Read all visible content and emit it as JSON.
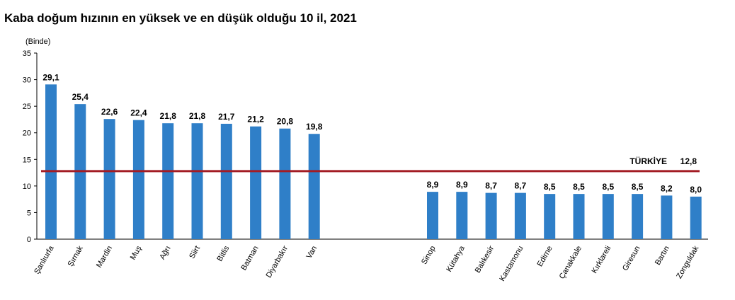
{
  "chart_data": {
    "type": "bar",
    "title": "Kaba doğum hızının en yüksek ve en düşük olduğu 10 il, 2021",
    "unit_label": "(Binde)",
    "ylim": [
      0,
      35
    ],
    "yticks": [
      0,
      5,
      10,
      15,
      20,
      25,
      30,
      35
    ],
    "grid": false,
    "colors": {
      "bar": "#2f7fc8",
      "reference": "#a31c24"
    },
    "categories": [
      "Şanlıurfa",
      "Şırnak",
      "Mardin",
      "Muş",
      "Ağrı",
      "Siirt",
      "Bitlis",
      "Batman",
      "Diyarbakır",
      "Van",
      "Sinop",
      "Kütahya",
      "Balıkesir",
      "Kastamonu",
      "Edirne",
      "Çanakkale",
      "Kırklareli",
      "Giresun",
      "Bartın",
      "Zonguldak"
    ],
    "values": [
      29.1,
      25.4,
      22.6,
      22.4,
      21.8,
      21.8,
      21.7,
      21.2,
      20.8,
      19.8,
      8.9,
      8.9,
      8.7,
      8.7,
      8.5,
      8.5,
      8.5,
      8.5,
      8.2,
      8.0
    ],
    "value_labels": [
      "29,1",
      "25,4",
      "22,6",
      "22,4",
      "21,8",
      "21,8",
      "21,7",
      "21,2",
      "20,8",
      "19,8",
      "8,9",
      "8,9",
      "8,7",
      "8,7",
      "8,5",
      "8,5",
      "8,5",
      "8,5",
      "8,2",
      "8,0"
    ],
    "reference_line": {
      "name": "TÜRKİYE",
      "value": 12.8,
      "value_label": "12,8"
    }
  }
}
